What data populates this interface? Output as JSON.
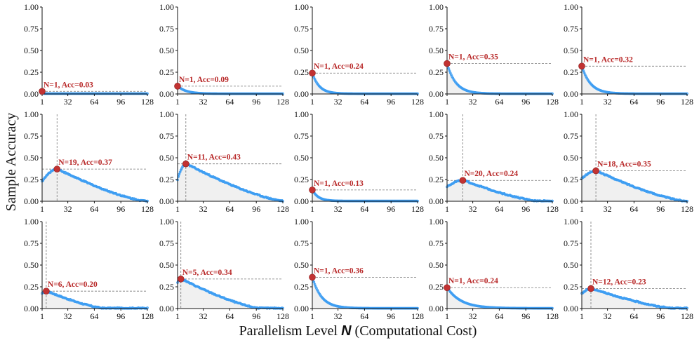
{
  "chart_data": {
    "type": "line",
    "layout": "3x5 grid of subplots",
    "ylabel": "Sample Accuracy",
    "xlabel_prefix": "Parallelism Level ",
    "xlabel_var": "N",
    "xlabel_suffix": " (Computational Cost)",
    "xlim": [
      1,
      128
    ],
    "ylim": [
      0,
      1.0
    ],
    "x_ticks": [
      1,
      32,
      64,
      96,
      128
    ],
    "y_ticks": [
      0.0,
      0.25,
      0.5,
      0.75,
      1.0
    ],
    "y_tick_labels": [
      "0.00",
      "0.25",
      "0.50",
      "0.75",
      "1.00"
    ],
    "colors": {
      "series": "#3d9df2",
      "marker": "#c23232",
      "annotation": "#b82828",
      "guide": "#777777",
      "fill": "#f0f0f0"
    },
    "panels": [
      {
        "row": 0,
        "col": 0,
        "peak_n": 1,
        "peak_acc": 0.03,
        "shape": "flat",
        "label": "N=1, Acc=0.03"
      },
      {
        "row": 0,
        "col": 1,
        "peak_n": 1,
        "peak_acc": 0.09,
        "shape": "decay",
        "decay": 0.1,
        "label": "N=1, Acc=0.09"
      },
      {
        "row": 0,
        "col": 2,
        "peak_n": 1,
        "peak_acc": 0.24,
        "shape": "decay",
        "decay": 0.12,
        "label": "N=1, Acc=0.24"
      },
      {
        "row": 0,
        "col": 3,
        "peak_n": 1,
        "peak_acc": 0.35,
        "shape": "decay",
        "decay": 0.095,
        "label": "N=1, Acc=0.35"
      },
      {
        "row": 0,
        "col": 4,
        "peak_n": 1,
        "peak_acc": 0.32,
        "shape": "decay",
        "decay": 0.095,
        "label": "N=1, Acc=0.32"
      },
      {
        "row": 1,
        "col": 0,
        "peak_n": 19,
        "peak_acc": 0.37,
        "shape": "hump",
        "start": 0.23,
        "end_n": 125,
        "label": "N=19, Acc=0.37"
      },
      {
        "row": 1,
        "col": 1,
        "peak_n": 11,
        "peak_acc": 0.43,
        "shape": "hump",
        "start": 0.25,
        "end_n": 128,
        "label": "N=11, Acc=0.43"
      },
      {
        "row": 1,
        "col": 2,
        "peak_n": 1,
        "peak_acc": 0.13,
        "shape": "decay",
        "decay": 0.14,
        "label": "N=1, Acc=0.13"
      },
      {
        "row": 1,
        "col": 3,
        "peak_n": 20,
        "peak_acc": 0.24,
        "shape": "hump",
        "start": 0.17,
        "end_n": 110,
        "label": "N=20, Acc=0.24"
      },
      {
        "row": 1,
        "col": 4,
        "peak_n": 18,
        "peak_acc": 0.35,
        "shape": "hump",
        "start": 0.26,
        "end_n": 125,
        "label": "N=18, Acc=0.35"
      },
      {
        "row": 2,
        "col": 0,
        "peak_n": 6,
        "peak_acc": 0.2,
        "shape": "hump",
        "start": 0.17,
        "end_n": 75,
        "label": "N=6, Acc=0.20"
      },
      {
        "row": 2,
        "col": 1,
        "peak_n": 5,
        "peak_acc": 0.34,
        "shape": "hump",
        "start": 0.3,
        "end_n": 100,
        "label": "N=5, Acc=0.34"
      },
      {
        "row": 2,
        "col": 2,
        "peak_n": 1,
        "peak_acc": 0.36,
        "shape": "decay",
        "decay": 0.09,
        "label": "N=1, Acc=0.36"
      },
      {
        "row": 2,
        "col": 3,
        "peak_n": 1,
        "peak_acc": 0.24,
        "shape": "decay",
        "decay": 0.06,
        "label": "N=1, Acc=0.24"
      },
      {
        "row": 2,
        "col": 4,
        "peak_n": 12,
        "peak_acc": 0.23,
        "shape": "hump",
        "start": 0.17,
        "end_n": 110,
        "label": "N=12, Acc=0.23"
      }
    ]
  }
}
